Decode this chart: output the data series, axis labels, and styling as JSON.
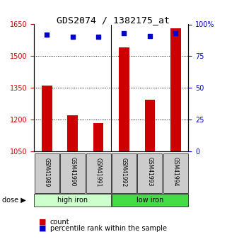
{
  "title": "GDS2074 / 1382175_at",
  "samples": [
    "GSM41989",
    "GSM41990",
    "GSM41991",
    "GSM41992",
    "GSM41993",
    "GSM41994"
  ],
  "counts": [
    1360,
    1220,
    1185,
    1540,
    1295,
    1630
  ],
  "percentiles": [
    92,
    90,
    90,
    93,
    91,
    93
  ],
  "ylim_left": [
    1050,
    1650
  ],
  "ylim_right": [
    0,
    100
  ],
  "yticks_left": [
    1050,
    1200,
    1350,
    1500,
    1650
  ],
  "yticks_right": [
    0,
    25,
    50,
    75,
    100
  ],
  "ytick_labels_right": [
    "0",
    "25",
    "50",
    "75",
    "100%"
  ],
  "groups": [
    {
      "label": "high iron",
      "samples": [
        "GSM41989",
        "GSM41990",
        "GSM41991"
      ],
      "color": "#ccffcc"
    },
    {
      "label": "low iron",
      "samples": [
        "GSM41992",
        "GSM41993",
        "GSM41994"
      ],
      "color": "#44dd44"
    }
  ],
  "bar_color": "#cc0000",
  "dot_color": "#0000cc",
  "bar_width": 0.4,
  "dose_label": "dose",
  "legend_count_label": "count",
  "legend_pct_label": "percentile rank within the sample",
  "grid_color": "#000000",
  "background_plot": "#ffffff",
  "left_tick_color": "#cc0000",
  "right_tick_color": "#0000cc"
}
